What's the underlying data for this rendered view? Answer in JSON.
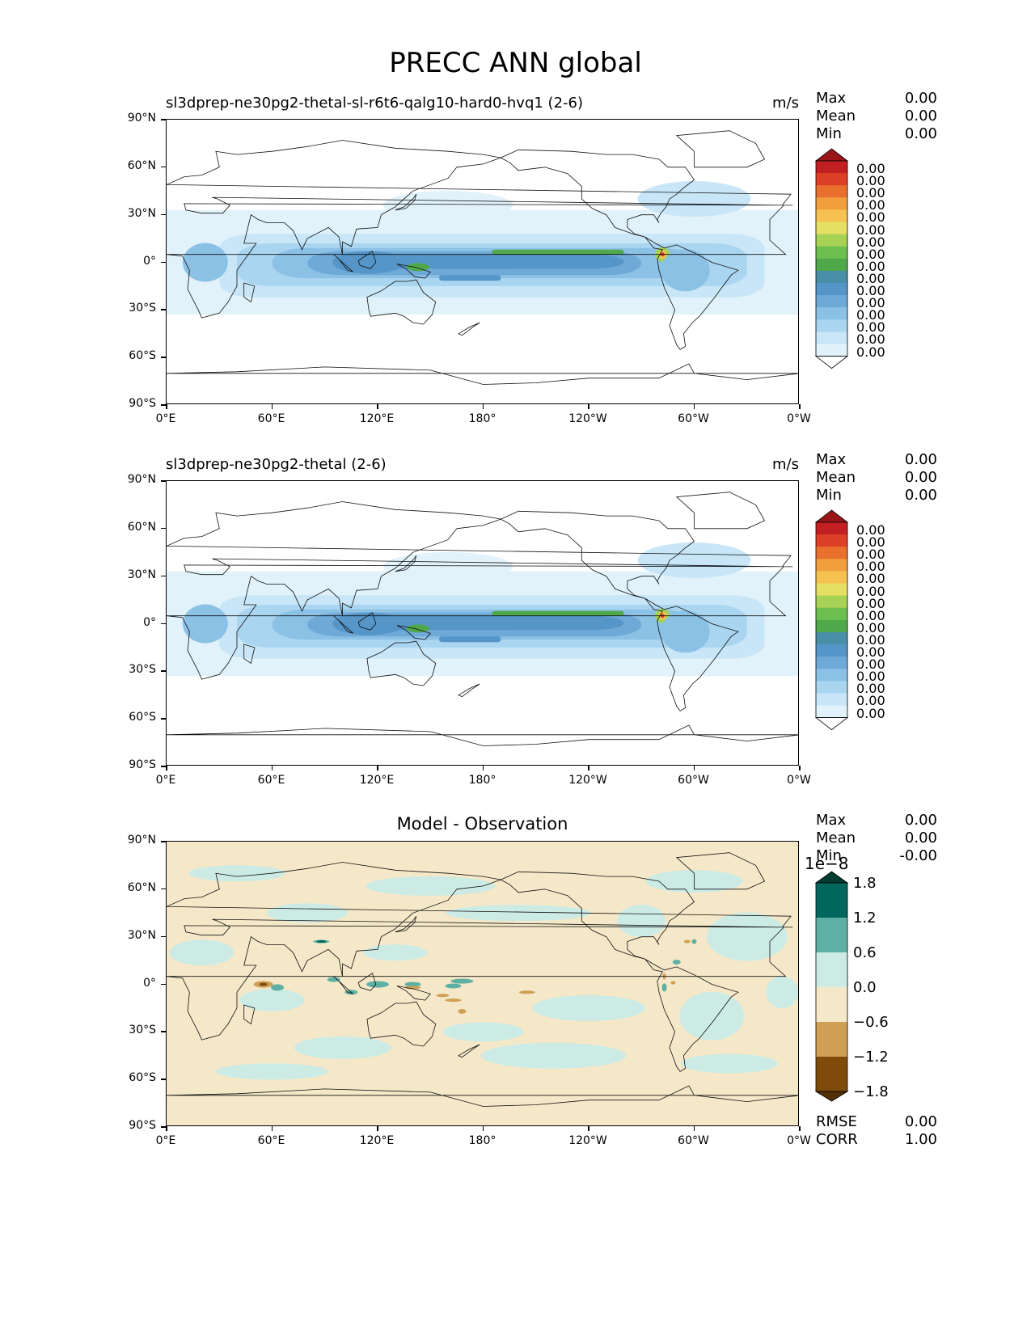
{
  "figure_title": "PRECC ANN global",
  "x_ticks": [
    "0°E",
    "60°E",
    "120°E",
    "180°",
    "120°W",
    "60°W",
    "0°W"
  ],
  "y_ticks": [
    "90°N",
    "60°N",
    "30°N",
    "0°",
    "30°S",
    "60°S",
    "90°S"
  ],
  "panels": [
    {
      "title": "sl3dprep-ne30pg2-thetal-sl-r6t6-qalg10-hard0-hvq1 (2-6)",
      "units": "m/s",
      "stats": {
        "max_label": "Max",
        "max": "0.00",
        "mean_label": "Mean",
        "mean": "0.00",
        "min_label": "Min",
        "min": "0.00"
      },
      "colorbar_labels": [
        "0.00",
        "0.00",
        "0.00",
        "0.00",
        "0.00",
        "0.00",
        "0.00",
        "0.00",
        "0.00",
        "0.00",
        "0.00",
        "0.00",
        "0.00",
        "0.00",
        "0.00",
        "0.00"
      ]
    },
    {
      "title": "sl3dprep-ne30pg2-thetal (2-6)",
      "units": "m/s",
      "stats": {
        "max_label": "Max",
        "max": "0.00",
        "mean_label": "Mean",
        "mean": "0.00",
        "min_label": "Min",
        "min": "0.00"
      },
      "colorbar_labels": [
        "0.00",
        "0.00",
        "0.00",
        "0.00",
        "0.00",
        "0.00",
        "0.00",
        "0.00",
        "0.00",
        "0.00",
        "0.00",
        "0.00",
        "0.00",
        "0.00",
        "0.00",
        "0.00"
      ]
    },
    {
      "title": "Model - Observation",
      "units": "",
      "stats": {
        "max_label": "Max",
        "max": "0.00",
        "mean_label": "Mean",
        "mean": "0.00",
        "min_label": "Min",
        "min": "-0.00"
      },
      "colorbar_scale": "1e−8",
      "colorbar_labels": [
        "1.8",
        "1.2",
        "0.6",
        "0.0",
        "−0.6",
        "−1.2",
        "−1.8"
      ],
      "metrics": {
        "rmse_label": "RMSE",
        "rmse": "0.00",
        "corr_label": "CORR",
        "corr": "1.00"
      }
    }
  ],
  "colors": {
    "precip_levels": [
      "#ffffff",
      "#e1f2fb",
      "#c8e6f7",
      "#a9d5f0",
      "#8cc1e6",
      "#6fa9d8",
      "#5595c8",
      "#4a8fa8",
      "#4fa84a",
      "#6dbf4f",
      "#a8d255",
      "#e5e063",
      "#f5c250",
      "#f19f3c",
      "#e96f2d",
      "#dc3f26",
      "#c21f22",
      "#9a1517"
    ],
    "diff_levels": [
      "#543005",
      "#7f4b0a",
      "#cf9f55",
      "#f5e8c8",
      "#cdebe5",
      "#5db0a3",
      "#01665e",
      "#003c30"
    ],
    "coast": "#111111"
  }
}
